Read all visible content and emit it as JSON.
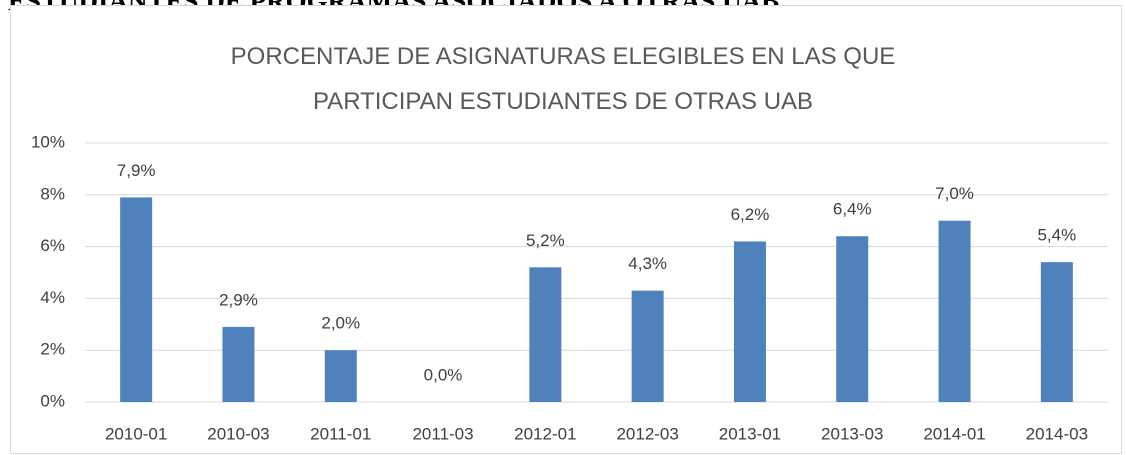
{
  "page_heading": "ESTUDIANTES DE PROGRAMAS ASOCIADOS A OTRAS UAB",
  "chart_data": {
    "type": "bar",
    "title": "PORCENTAJE DE ASIGNATURAS ELEGIBLES EN LAS QUE PARTICIPAN ESTUDIANTES DE OTRAS UAB",
    "categories": [
      "2010-01",
      "2010-03",
      "2011-01",
      "2011-03",
      "2012-01",
      "2012-03",
      "2013-01",
      "2013-03",
      "2014-01",
      "2014-03"
    ],
    "values": [
      7.9,
      2.9,
      2.0,
      0.0,
      5.2,
      4.3,
      6.2,
      6.4,
      7.0,
      5.4
    ],
    "value_labels": [
      "7,9%",
      "2,9%",
      "2,0%",
      "0,0%",
      "5,2%",
      "4,3%",
      "6,2%",
      "6,4%",
      "7,0%",
      "5,4%"
    ],
    "color": "#4f81bd",
    "ylim": [
      0,
      10
    ],
    "yticks": [
      {
        "value": 0,
        "label": "0%"
      },
      {
        "value": 2,
        "label": "2%"
      },
      {
        "value": 4,
        "label": "4%"
      },
      {
        "value": 6,
        "label": "6%"
      },
      {
        "value": 8,
        "label": "8%"
      },
      {
        "value": 10,
        "label": "10%"
      }
    ],
    "grid": true
  }
}
